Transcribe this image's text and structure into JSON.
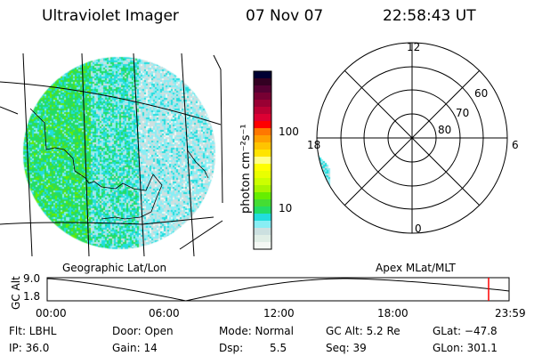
{
  "header": {
    "instrument": "Ultraviolet Imager",
    "date": "07 Nov 07",
    "time": "22:58:43 UT"
  },
  "colorbar": {
    "label": "photon cm⁻²s⁻¹",
    "ticks": [
      "100",
      "10"
    ],
    "colors": [
      "#000033",
      "#330022",
      "#550033",
      "#770033",
      "#990033",
      "#bb0033",
      "#dd0033",
      "#ff0000",
      "#ff7700",
      "#ffa000",
      "#ffc400",
      "#ffe400",
      "#ffff88",
      "#ffff00",
      "#eaff00",
      "#ccff00",
      "#a8f500",
      "#66ee00",
      "#44dd33",
      "#22dd66",
      "#22dddd",
      "#88eef4",
      "#cce0e0",
      "#e0eee6",
      "#f4f8f4"
    ]
  },
  "left_panel": {
    "label": "Geographic Lat/Lon"
  },
  "right_panel": {
    "label": "Apex MLat/MLT",
    "mlt_labels": [
      "12",
      "6",
      "0",
      "18"
    ],
    "lat_labels": [
      "60",
      "70",
      "80"
    ]
  },
  "timeline": {
    "ylabel": "GC Alt",
    "yticks": [
      "9.0",
      "1.8"
    ],
    "xticks": [
      "00:00",
      "06:00",
      "12:00",
      "18:00",
      "23:59"
    ],
    "current_time_marker_color": "#ff0000"
  },
  "info": {
    "flt": "Flt: LBHL",
    "ip": "IP: 36.0",
    "door": "Door: Open",
    "gain": "Gain: 14",
    "mode": "Mode: Normal",
    "dsp_label": "Dsp:",
    "dsp_value": "5.5",
    "gcalt": "GC Alt: 5.2 Re",
    "seq": "Seq: 39",
    "glat": "GLat: −47.8",
    "glon": "GLon: 301.1"
  }
}
